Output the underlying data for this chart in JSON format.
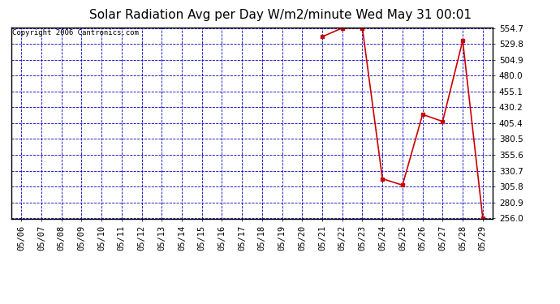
{
  "title": "Solar Radiation Avg per Day W/m2/minute Wed May 31 00:01",
  "copyright": "Copyright 2006 Cantronics.com",
  "x_labels": [
    "05/06",
    "05/07",
    "05/08",
    "05/09",
    "05/10",
    "05/11",
    "05/12",
    "05/13",
    "05/14",
    "05/15",
    "05/16",
    "05/17",
    "05/18",
    "05/19",
    "05/20",
    "05/21",
    "05/22",
    "05/23",
    "05/24",
    "05/25",
    "05/26",
    "05/27",
    "05/28",
    "05/29"
  ],
  "x_values": [
    0,
    1,
    2,
    3,
    4,
    5,
    6,
    7,
    8,
    9,
    10,
    11,
    12,
    13,
    14,
    15,
    16,
    17,
    18,
    19,
    20,
    21,
    22,
    23
  ],
  "data_points": [
    [
      15,
      541.0
    ],
    [
      16,
      554.7
    ],
    [
      17,
      554.7
    ],
    [
      18,
      318.0
    ],
    [
      19,
      308.0
    ],
    [
      20,
      419.0
    ],
    [
      21,
      408.0
    ],
    [
      22,
      535.0
    ],
    [
      23,
      256.0
    ]
  ],
  "y_ticks": [
    256.0,
    280.9,
    305.8,
    330.7,
    355.6,
    380.5,
    405.4,
    430.2,
    455.1,
    480.0,
    504.9,
    529.8,
    554.7
  ],
  "y_min": 256.0,
  "y_max": 554.7,
  "line_color": "#cc0000",
  "marker_color": "#cc0000",
  "fig_bg_color": "#ffffff",
  "plot_bg_color": "#ffffff",
  "grid_color": "#0000bb",
  "title_fontsize": 11,
  "copyright_fontsize": 6.5,
  "tick_fontsize": 7.5
}
